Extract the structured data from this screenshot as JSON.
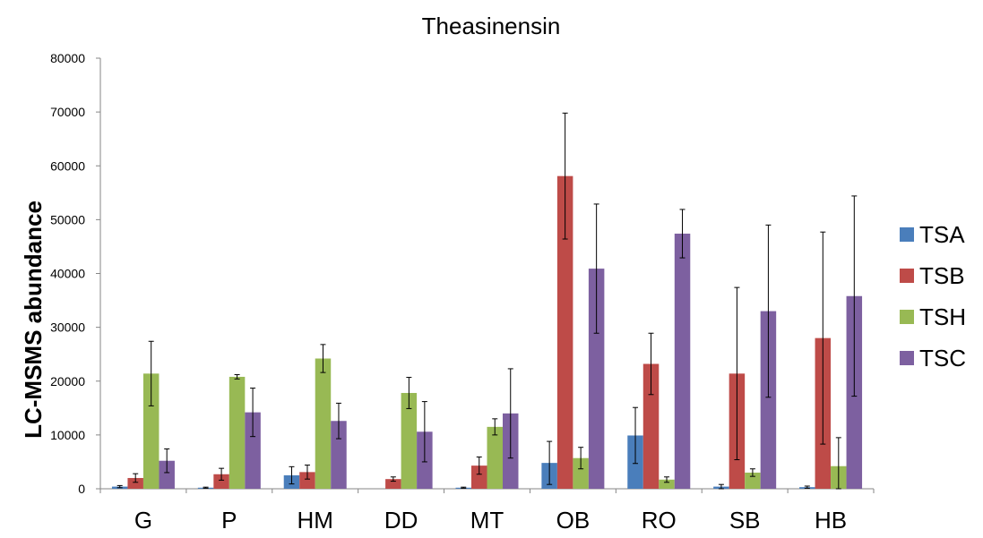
{
  "chart_data": {
    "type": "bar",
    "title": "Theasinensin",
    "xlabel": "",
    "ylabel": "LC-MSMS abundance",
    "ylim": [
      0,
      80000
    ],
    "yticks": [
      0,
      10000,
      20000,
      30000,
      40000,
      50000,
      60000,
      70000,
      80000
    ],
    "ytick_labels": [
      "0",
      "10000",
      "20000",
      "30000",
      "40000",
      "50000",
      "60000",
      "70000",
      "80000"
    ],
    "categories": [
      "G",
      "P",
      "HM",
      "DD",
      "MT",
      "OB",
      "RO",
      "SB",
      "HB"
    ],
    "grid": false,
    "legend_position": "right",
    "series": [
      {
        "name": "TSA",
        "color": "#4a7ebb",
        "values": [
          400,
          200,
          2500,
          0,
          200,
          4800,
          9900,
          400,
          300
        ],
        "errors": [
          200,
          100,
          1600,
          0,
          100,
          4000,
          5200,
          400,
          200
        ]
      },
      {
        "name": "TSB",
        "color": "#be4b48",
        "values": [
          2000,
          2700,
          3100,
          1800,
          4300,
          58100,
          23200,
          21400,
          28000
        ],
        "errors": [
          800,
          1100,
          1300,
          400,
          1600,
          11700,
          5700,
          16000,
          19700
        ]
      },
      {
        "name": "TSH",
        "color": "#98b954",
        "values": [
          21400,
          20800,
          24200,
          17800,
          11500,
          5700,
          1700,
          3000,
          4200
        ],
        "errors": [
          6000,
          400,
          2600,
          2900,
          1500,
          2000,
          500,
          700,
          5300
        ]
      },
      {
        "name": "TSC",
        "color": "#7d60a0",
        "values": [
          5200,
          14200,
          12600,
          10600,
          14000,
          40900,
          47400,
          33000,
          35800
        ],
        "errors": [
          2200,
          4500,
          3300,
          5600,
          8300,
          12000,
          4500,
          16000,
          18600
        ]
      }
    ]
  }
}
